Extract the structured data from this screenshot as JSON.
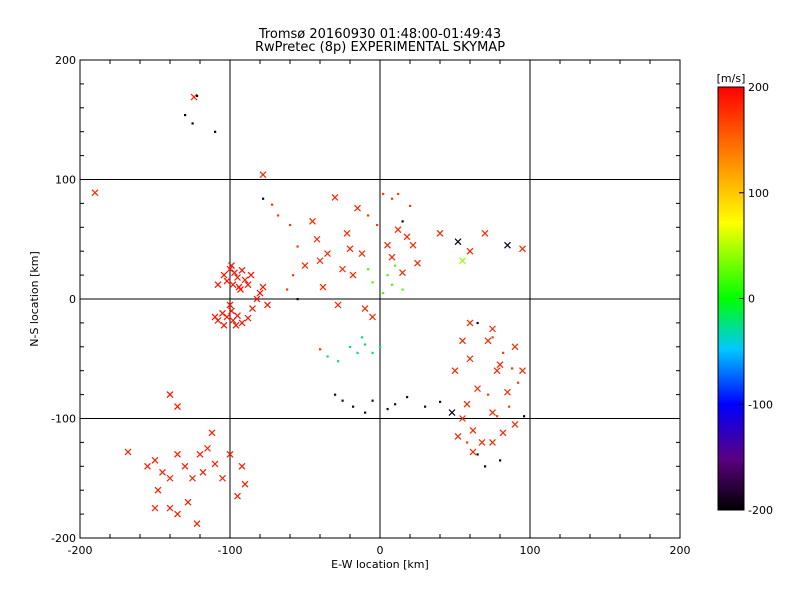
{
  "chart_data": {
    "type": "scatter",
    "title": "Tromsø 20160930 01:48:00-01:49:43",
    "subtitle": "RwPretec (8p) EXPERIMENTAL SKYMAP",
    "xlabel": "E-W location [km]",
    "ylabel": "N-S location [km]",
    "xlim": [
      -200,
      200
    ],
    "ylim": [
      -200,
      200
    ],
    "xticks": [
      "-200",
      "-100",
      "0",
      "100",
      "200"
    ],
    "yticks": [
      "-200",
      "-100",
      "0",
      "100",
      "200"
    ],
    "grid": "major lines at -100, 0, 100",
    "colorbar": {
      "label": "[m/s]",
      "range": [
        -200,
        200
      ],
      "ticks": [
        "200",
        "100",
        "0",
        "-100",
        "-200"
      ],
      "colors": [
        "#000000",
        "#5a0080",
        "#0000ff",
        "#00c8ff",
        "#00ff00",
        "#ffff00",
        "#ff8000",
        "#ff0000"
      ]
    },
    "series": [
      {
        "marker": "x",
        "points": [
          [
            -190,
            89
          ],
          [
            -78,
            104
          ],
          [
            -124,
            169
          ],
          [
            -100,
            25
          ],
          [
            -97,
            22
          ],
          [
            -95,
            18
          ],
          [
            -102,
            15
          ],
          [
            -98,
            12
          ],
          [
            -94,
            10
          ],
          [
            -104,
            20
          ],
          [
            -92,
            24
          ],
          [
            -90,
            16
          ],
          [
            -108,
            12
          ],
          [
            -86,
            20
          ],
          [
            -99,
            28
          ],
          [
            -93,
            8
          ],
          [
            -105,
            -12
          ],
          [
            -102,
            -15
          ],
          [
            -98,
            -18
          ],
          [
            -95,
            -14
          ],
          [
            -92,
            -20
          ],
          [
            -108,
            -18
          ],
          [
            -99,
            -10
          ],
          [
            -96,
            -22
          ],
          [
            -110,
            -15
          ],
          [
            -88,
            -16
          ],
          [
            -104,
            -22
          ],
          [
            -100,
            -5
          ],
          [
            -85,
            -8
          ],
          [
            -80,
            5
          ],
          [
            -78,
            10
          ],
          [
            -82,
            0
          ],
          [
            -75,
            -5
          ],
          [
            -88,
            12
          ],
          [
            -140,
            -80
          ],
          [
            -135,
            -90
          ],
          [
            -168,
            -128
          ],
          [
            -155,
            -140
          ],
          [
            -150,
            -135
          ],
          [
            -145,
            -145
          ],
          [
            -148,
            -160
          ],
          [
            -140,
            -150
          ],
          [
            -135,
            -130
          ],
          [
            -130,
            -140
          ],
          [
            -125,
            -150
          ],
          [
            -128,
            -170
          ],
          [
            -120,
            -130
          ],
          [
            -118,
            -145
          ],
          [
            -115,
            -125
          ],
          [
            -110,
            -138
          ],
          [
            -105,
            -150
          ],
          [
            -100,
            -130
          ],
          [
            -95,
            -165
          ],
          [
            -92,
            -140
          ],
          [
            -90,
            -155
          ],
          [
            -135,
            -180
          ],
          [
            -122,
            -188
          ],
          [
            -112,
            -112
          ],
          [
            -150,
            -175
          ],
          [
            -140,
            -175
          ],
          [
            -30,
            85
          ],
          [
            -15,
            76
          ],
          [
            -45,
            65
          ],
          [
            -42,
            50
          ],
          [
            -35,
            38
          ],
          [
            -20,
            42
          ],
          [
            -25,
            25
          ],
          [
            -40,
            32
          ],
          [
            -50,
            28
          ],
          [
            -22,
            55
          ],
          [
            -12,
            38
          ],
          [
            -18,
            20
          ],
          [
            -38,
            10
          ],
          [
            -28,
            -5
          ],
          [
            -10,
            -8
          ],
          [
            -5,
            -15
          ],
          [
            12,
            58
          ],
          [
            22,
            45
          ],
          [
            18,
            52
          ],
          [
            8,
            35
          ],
          [
            25,
            30
          ],
          [
            15,
            22
          ],
          [
            5,
            45
          ],
          [
            40,
            55
          ],
          [
            52,
            48
          ],
          [
            60,
            40
          ],
          [
            70,
            55
          ],
          [
            85,
            45
          ],
          [
            95,
            42
          ],
          [
            55,
            32
          ],
          [
            55,
            -35
          ],
          [
            60,
            -20
          ],
          [
            72,
            -35
          ],
          [
            80,
            -55
          ],
          [
            90,
            -40
          ],
          [
            75,
            -25
          ],
          [
            65,
            -75
          ],
          [
            85,
            -78
          ],
          [
            50,
            -60
          ],
          [
            60,
            -50
          ],
          [
            78,
            -60
          ],
          [
            95,
            -60
          ],
          [
            48,
            -95
          ],
          [
            55,
            -100
          ],
          [
            62,
            -110
          ],
          [
            68,
            -120
          ],
          [
            75,
            -95
          ],
          [
            52,
            -115
          ],
          [
            58,
            -88
          ],
          [
            62,
            -128
          ],
          [
            75,
            -120
          ],
          [
            90,
            -105
          ],
          [
            82,
            -112
          ]
        ],
        "colors": "mostly red (+150 to +200 m/s)"
      },
      {
        "marker": "dot",
        "points": [
          [
            -130,
            154
          ],
          [
            -125,
            147
          ],
          [
            -110,
            140
          ],
          [
            -122,
            170
          ],
          [
            -78,
            84
          ],
          [
            -72,
            79
          ],
          [
            -68,
            70
          ],
          [
            -60,
            62
          ],
          [
            -55,
            44
          ],
          [
            -58,
            20
          ],
          [
            -62,
            8
          ],
          [
            -55,
            0
          ],
          [
            2,
            88
          ],
          [
            8,
            84
          ],
          [
            12,
            88
          ],
          [
            20,
            78
          ],
          [
            -8,
            70
          ],
          [
            -2,
            62
          ],
          [
            15,
            65
          ],
          [
            5,
            20
          ],
          [
            8,
            12
          ],
          [
            2,
            5
          ],
          [
            -5,
            14
          ],
          [
            10,
            28
          ],
          [
            15,
            8
          ],
          [
            -8,
            25
          ],
          [
            -40,
            -42
          ],
          [
            -35,
            -48
          ],
          [
            -28,
            -52
          ],
          [
            -20,
            -40
          ],
          [
            -15,
            -45
          ],
          [
            -10,
            -38
          ],
          [
            -5,
            -45
          ],
          [
            0,
            -40
          ],
          [
            -12,
            -32
          ],
          [
            -30,
            -80
          ],
          [
            -25,
            -85
          ],
          [
            -18,
            -90
          ],
          [
            -10,
            -95
          ],
          [
            -5,
            -85
          ],
          [
            5,
            -92
          ],
          [
            10,
            -88
          ],
          [
            18,
            -82
          ],
          [
            30,
            -90
          ],
          [
            40,
            -86
          ],
          [
            65,
            -20
          ],
          [
            75,
            -32
          ],
          [
            82,
            -45
          ],
          [
            88,
            -58
          ],
          [
            92,
            -70
          ],
          [
            72,
            -80
          ],
          [
            86,
            -90
          ],
          [
            96,
            -98
          ],
          [
            78,
            -98
          ],
          [
            58,
            -120
          ],
          [
            65,
            -130
          ],
          [
            70,
            -140
          ],
          [
            80,
            -135
          ]
        ],
        "colors": "mixed, black to red"
      }
    ]
  }
}
